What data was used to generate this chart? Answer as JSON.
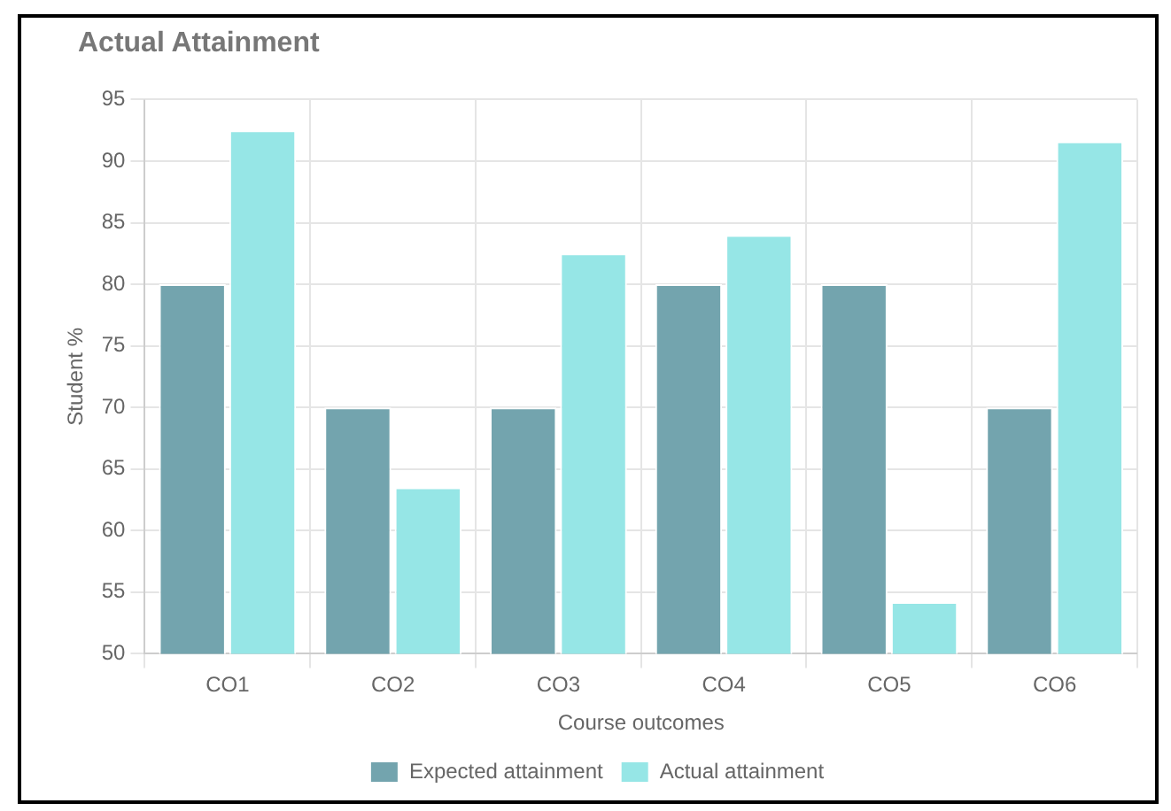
{
  "chart_data": {
    "type": "bar",
    "title": "Actual Attainment",
    "xlabel": "Course outcomes",
    "ylabel": "Student %",
    "categories": [
      "CO1",
      "CO2",
      "CO3",
      "CO4",
      "CO5",
      "CO6"
    ],
    "series": [
      {
        "name": "Expected attainment",
        "color": "#73a4ae",
        "values": [
          80,
          70,
          70,
          80,
          80,
          70
        ]
      },
      {
        "name": "Actual attainment",
        "color": "#96e6e6",
        "values": [
          92.5,
          63.5,
          82.5,
          84,
          54.2,
          91.6
        ]
      }
    ],
    "ylim": [
      50,
      95
    ],
    "yticks": [
      50,
      55,
      60,
      65,
      70,
      75,
      80,
      85,
      90,
      95
    ],
    "grid": true,
    "legend": "bottom"
  }
}
